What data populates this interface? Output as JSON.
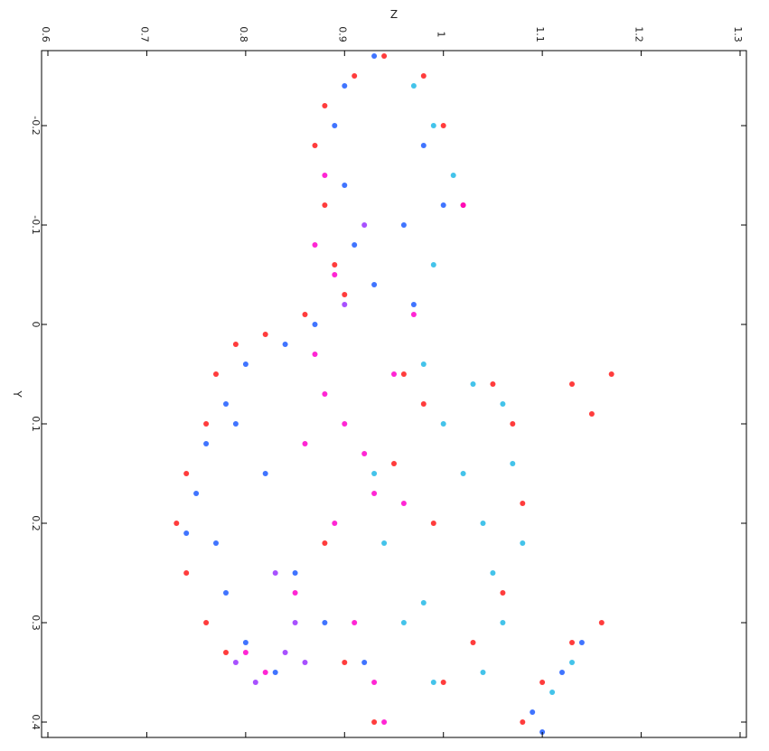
{
  "chart_data": {
    "type": "scatter",
    "title": "",
    "xlabel": "Z",
    "ylabel": "Y",
    "orientation": "rotated-90-clockwise",
    "x_axis": {
      "quantity": "Z",
      "lim": [
        0.6,
        1.3
      ],
      "ticks": [
        0.6,
        0.7,
        0.8,
        0.9,
        1.0,
        1.1,
        1.2,
        1.3
      ],
      "tick_labels": [
        "0.6",
        "0.7",
        "0.8",
        "0.9",
        "1",
        "1.1",
        "1.2",
        "1.3"
      ]
    },
    "y_axis": {
      "quantity": "Y",
      "lim": [
        -0.27,
        0.41
      ],
      "ticks": [
        -0.2,
        -0.1,
        0.0,
        0.1,
        0.2,
        0.3,
        0.4
      ],
      "tick_labels": [
        "-0.2",
        "-0.1",
        "0",
        "0.1",
        "0.2",
        "0.3",
        "0.4"
      ]
    },
    "grid": false,
    "legend": "none",
    "series": [
      {
        "color": "#ff1a1a",
        "points": [
          [
            0.94,
            -0.27
          ],
          [
            0.91,
            -0.25
          ],
          [
            0.88,
            -0.22
          ],
          [
            0.87,
            -0.18
          ],
          [
            0.88,
            -0.12
          ],
          [
            0.89,
            -0.06
          ],
          [
            0.9,
            -0.03
          ],
          [
            0.86,
            -0.01
          ],
          [
            0.82,
            0.01
          ],
          [
            0.79,
            0.02
          ],
          [
            0.77,
            0.05
          ],
          [
            0.76,
            0.1
          ],
          [
            0.74,
            0.15
          ],
          [
            0.73,
            0.2
          ],
          [
            0.74,
            0.25
          ],
          [
            0.76,
            0.3
          ],
          [
            0.78,
            0.33
          ],
          [
            0.9,
            0.34
          ],
          [
            0.93,
            0.4
          ],
          [
            0.88,
            0.22
          ],
          [
            0.96,
            0.05
          ],
          [
            0.98,
            0.08
          ],
          [
            1.05,
            0.06
          ],
          [
            1.07,
            0.1
          ],
          [
            1.08,
            0.18
          ],
          [
            1.06,
            0.27
          ],
          [
            1.03,
            0.32
          ],
          [
            1.0,
            0.36
          ],
          [
            0.99,
            0.2
          ],
          [
            0.95,
            0.14
          ],
          [
            1.13,
            0.06
          ],
          [
            1.15,
            0.09
          ],
          [
            1.17,
            0.05
          ],
          [
            1.16,
            0.3
          ],
          [
            1.13,
            0.32
          ],
          [
            1.1,
            0.36
          ],
          [
            1.08,
            0.4
          ],
          [
            1.0,
            -0.2
          ],
          [
            1.02,
            -0.12
          ],
          [
            0.98,
            -0.25
          ]
        ]
      },
      {
        "color": "#ff00cc",
        "points": [
          [
            0.87,
            0.03
          ],
          [
            0.88,
            0.07
          ],
          [
            0.9,
            0.1
          ],
          [
            0.92,
            0.13
          ],
          [
            0.93,
            0.17
          ],
          [
            0.86,
            0.12
          ],
          [
            0.89,
            0.2
          ],
          [
            0.91,
            0.3
          ],
          [
            0.93,
            0.36
          ],
          [
            0.94,
            0.4
          ],
          [
            0.82,
            0.35
          ],
          [
            0.8,
            0.33
          ],
          [
            0.95,
            0.05
          ],
          [
            0.96,
            0.18
          ],
          [
            0.87,
            -0.08
          ],
          [
            0.88,
            -0.15
          ],
          [
            0.89,
            -0.05
          ],
          [
            1.02,
            -0.12
          ],
          [
            0.97,
            -0.01
          ],
          [
            0.85,
            0.27
          ]
        ]
      },
      {
        "color": "#1e5cff",
        "points": [
          [
            0.93,
            -0.27
          ],
          [
            0.9,
            -0.24
          ],
          [
            0.89,
            -0.2
          ],
          [
            0.9,
            -0.14
          ],
          [
            0.91,
            -0.08
          ],
          [
            0.93,
            -0.04
          ],
          [
            0.96,
            -0.1
          ],
          [
            0.98,
            -0.18
          ],
          [
            1.0,
            -0.12
          ],
          [
            0.97,
            -0.02
          ],
          [
            0.87,
            0.0
          ],
          [
            0.84,
            0.02
          ],
          [
            0.8,
            0.04
          ],
          [
            0.78,
            0.08
          ],
          [
            0.76,
            0.12
          ],
          [
            0.75,
            0.17
          ],
          [
            0.74,
            0.21
          ],
          [
            0.77,
            0.22
          ],
          [
            0.78,
            0.27
          ],
          [
            0.8,
            0.32
          ],
          [
            0.83,
            0.35
          ],
          [
            0.82,
            0.15
          ],
          [
            0.79,
            0.1
          ],
          [
            0.85,
            0.25
          ],
          [
            0.88,
            0.3
          ],
          [
            0.92,
            0.34
          ],
          [
            1.09,
            0.39
          ],
          [
            1.1,
            0.41
          ],
          [
            1.12,
            0.35
          ],
          [
            1.14,
            0.32
          ]
        ]
      },
      {
        "color": "#22b8e6",
        "points": [
          [
            0.97,
            -0.24
          ],
          [
            0.99,
            -0.2
          ],
          [
            1.01,
            -0.15
          ],
          [
            0.99,
            -0.06
          ],
          [
            0.98,
            0.04
          ],
          [
            1.0,
            0.1
          ],
          [
            1.02,
            0.15
          ],
          [
            1.04,
            0.2
          ],
          [
            1.05,
            0.25
          ],
          [
            1.06,
            0.3
          ],
          [
            1.04,
            0.35
          ],
          [
            0.99,
            0.36
          ],
          [
            0.96,
            0.3
          ],
          [
            0.94,
            0.22
          ],
          [
            0.93,
            0.15
          ],
          [
            1.06,
            0.08
          ],
          [
            1.07,
            0.14
          ],
          [
            1.08,
            0.22
          ],
          [
            1.03,
            0.06
          ],
          [
            0.98,
            0.28
          ],
          [
            1.11,
            0.37
          ],
          [
            1.13,
            0.34
          ]
        ]
      },
      {
        "color": "#9933ff",
        "points": [
          [
            0.85,
            0.3
          ],
          [
            0.86,
            0.34
          ],
          [
            0.84,
            0.33
          ],
          [
            0.81,
            0.36
          ],
          [
            0.9,
            -0.02
          ],
          [
            0.92,
            -0.1
          ],
          [
            0.83,
            0.25
          ],
          [
            0.79,
            0.34
          ]
        ]
      }
    ]
  }
}
